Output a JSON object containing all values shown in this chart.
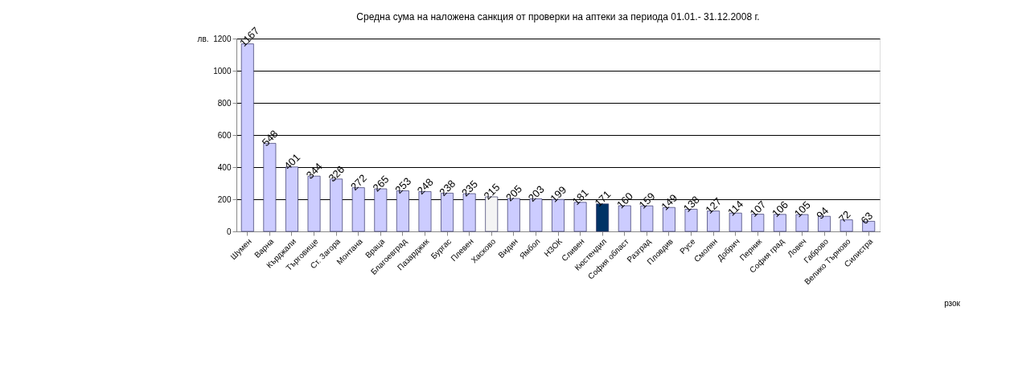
{
  "chart_data": {
    "type": "bar",
    "title": "Средна сума на наложена санкция от проверки на аптеки за периода 01.01.- 31.12.2008 г.",
    "ylabel": "лв.",
    "annotations": [
      "рзок"
    ],
    "categories": [
      "Шумен",
      "Варна",
      "Кърджали",
      "Търговище",
      "Ст. Загора",
      "Монтана",
      "Враца",
      "Благоевград",
      "Пазарджик",
      "Бургас",
      "Плевен",
      "Хасково",
      "Видин",
      "Ямбол",
      "НЗОК",
      "Сливен",
      "Кюстендил",
      "София област",
      "Разград",
      "Пловдив",
      "Русе",
      "Смолян",
      "Добрич",
      "Перник",
      "София град",
      "Ловеч",
      "Габрово",
      "Велико Търново",
      "Силистра"
    ],
    "values": [
      1167,
      548,
      401,
      344,
      326,
      272,
      265,
      253,
      248,
      238,
      235,
      215,
      205,
      203,
      199,
      181,
      171,
      160,
      159,
      149,
      138,
      127,
      114,
      107,
      106,
      105,
      94,
      72,
      63
    ],
    "colors": [
      "#ccccff",
      "#ccccff",
      "#ccccff",
      "#ccccff",
      "#ccccff",
      "#ccccff",
      "#ccccff",
      "#ccccff",
      "#ccccff",
      "#ccccff",
      "#ccccff",
      "#f4f4f4",
      "#ccccff",
      "#ccccff",
      "#ccccff",
      "#ccccff",
      "#003366",
      "#ccccff",
      "#ccccff",
      "#ccccff",
      "#ccccff",
      "#ccccff",
      "#ccccff",
      "#ccccff",
      "#ccccff",
      "#ccccff",
      "#ccccff",
      "#ccccff",
      "#ccccff"
    ],
    "ylim": [
      0,
      1200
    ],
    "yticks": [
      0,
      200,
      400,
      600,
      800,
      1000,
      1200
    ],
    "grid": "y",
    "data_labels": true
  }
}
